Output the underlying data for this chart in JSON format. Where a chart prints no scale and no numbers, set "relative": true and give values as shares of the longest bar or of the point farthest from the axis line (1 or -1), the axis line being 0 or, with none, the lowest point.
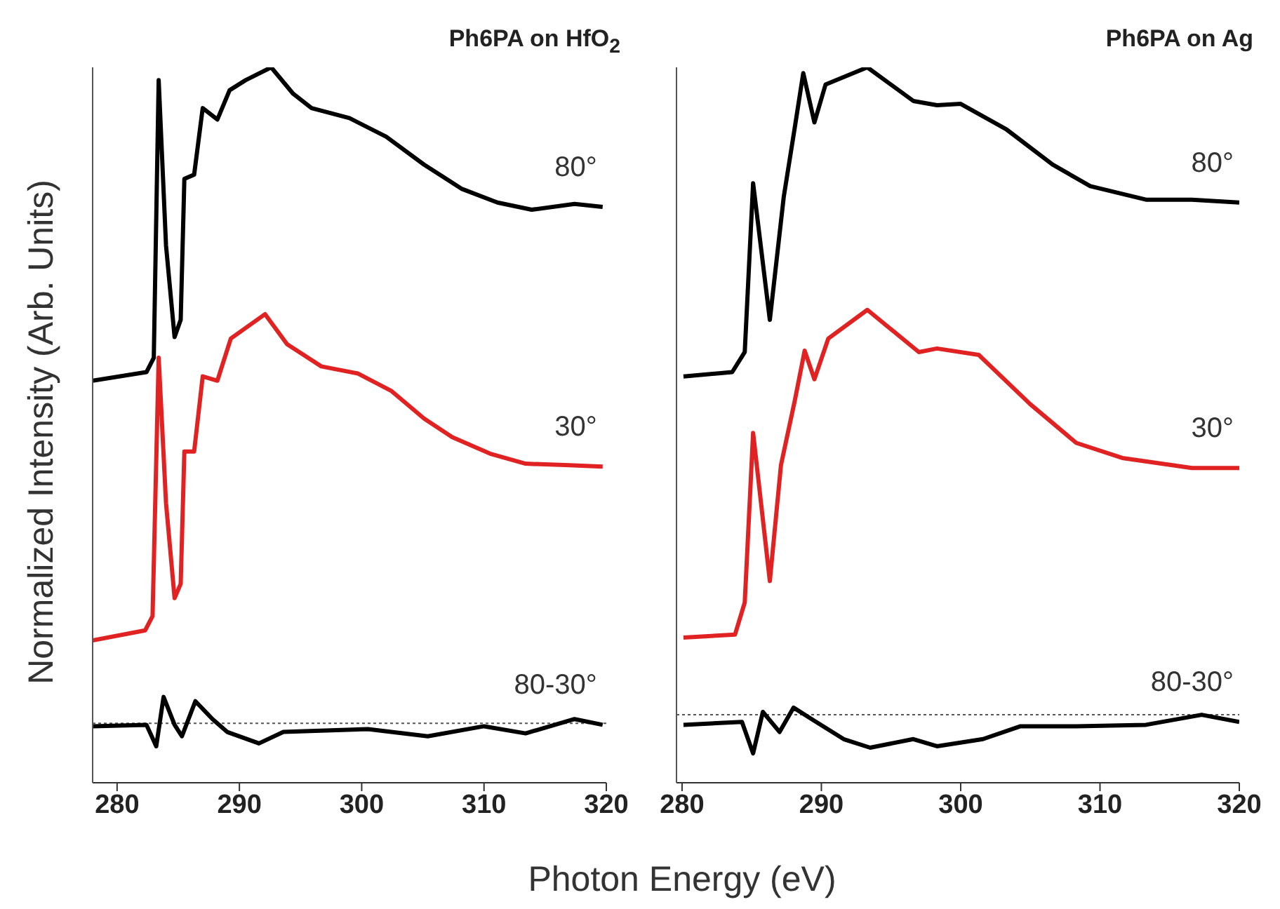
{
  "chart_data": [
    {
      "type": "line",
      "title": "Ph6PA on HfO$_{2}$",
      "ylabel": "Normalized Intensity (Arb. Units)",
      "xlabel": "Photon Energy (eV)",
      "relative": true,
      "xlim": [
        278,
        320
      ],
      "xticks": [
        280,
        290,
        300,
        310,
        320
      ],
      "series": [
        {
          "color": "#000000",
          "x": [
            278.0,
            282.4,
            283.0,
            283.4,
            284.0,
            284.7,
            285.2,
            285.5,
            286.3,
            287.0,
            288.2,
            289.2,
            290.5,
            292.6,
            294.4,
            295.9,
            299.0,
            302.0,
            305.1,
            308.2,
            311.1,
            313.9,
            317.4,
            319.7
          ],
          "values": [
            0.562,
            0.574,
            0.594,
            0.982,
            0.751,
            0.623,
            0.647,
            0.844,
            0.85,
            0.943,
            0.927,
            0.968,
            0.982,
            1.0,
            0.963,
            0.943,
            0.929,
            0.903,
            0.864,
            0.83,
            0.811,
            0.801,
            0.809,
            0.805
          ]
        },
        {
          "color": "#e02222",
          "x": [
            278.0,
            282.3,
            282.9,
            283.4,
            284.0,
            284.7,
            285.2,
            285.5,
            286.3,
            287.0,
            288.2,
            289.3,
            292.1,
            293.9,
            296.7,
            299.7,
            302.4,
            305.1,
            307.4,
            310.5,
            313.4,
            316.6,
            319.7
          ],
          "values": [
            0.199,
            0.213,
            0.233,
            0.594,
            0.391,
            0.258,
            0.278,
            0.463,
            0.463,
            0.568,
            0.562,
            0.621,
            0.655,
            0.613,
            0.582,
            0.572,
            0.548,
            0.509,
            0.483,
            0.46,
            0.446,
            0.444,
            0.442
          ]
        },
        {
          "color": "#000000",
          "x": [
            278.0,
            282.4,
            283.2,
            283.8,
            284.7,
            285.3,
            286.4,
            287.8,
            289.0,
            291.6,
            293.6,
            300.5,
            305.4,
            310.0,
            313.4,
            317.4,
            319.7
          ],
          "values": [
            0.079,
            0.081,
            0.051,
            0.12,
            0.081,
            0.065,
            0.114,
            0.089,
            0.071,
            0.055,
            0.071,
            0.075,
            0.065,
            0.079,
            0.069,
            0.089,
            0.081
          ]
        }
      ],
      "ref_lines": [
        {
          "axis": "y",
          "value": 0.083,
          "line_style": "dotted",
          "color": "#555555"
        }
      ],
      "annotations": [
        "80°",
        "30°",
        "80-30°"
      ]
    },
    {
      "type": "line",
      "title": "Ph6PA on Ag",
      "relative": true,
      "xlim": [
        279.6,
        320
      ],
      "xticks": [
        280,
        290,
        300,
        310,
        320
      ],
      "series": [
        {
          "color": "#000000",
          "x": [
            280.1,
            283.6,
            284.5,
            285.1,
            286.3,
            287.3,
            288.1,
            288.7,
            289.5,
            290.3,
            293.3,
            296.6,
            298.3,
            300.0,
            303.3,
            306.6,
            309.3,
            313.3,
            316.6,
            320.0
          ],
          "values": [
            0.568,
            0.574,
            0.602,
            0.838,
            0.647,
            0.819,
            0.917,
            0.992,
            0.923,
            0.976,
            1.0,
            0.953,
            0.947,
            0.949,
            0.913,
            0.864,
            0.834,
            0.815,
            0.815,
            0.811
          ]
        },
        {
          "color": "#e02222",
          "x": [
            280.1,
            283.8,
            284.5,
            285.1,
            286.3,
            287.1,
            288.1,
            288.8,
            289.5,
            290.5,
            293.3,
            297.0,
            298.3,
            301.3,
            305.0,
            308.3,
            311.6,
            316.6,
            320.0
          ],
          "values": [
            0.203,
            0.207,
            0.252,
            0.489,
            0.282,
            0.444,
            0.535,
            0.604,
            0.564,
            0.621,
            0.661,
            0.602,
            0.607,
            0.598,
            0.529,
            0.475,
            0.454,
            0.44,
            0.44
          ]
        },
        {
          "color": "#000000",
          "x": [
            280.1,
            284.3,
            285.1,
            285.8,
            287.0,
            288.0,
            289.3,
            291.6,
            293.5,
            296.6,
            298.3,
            301.6,
            304.3,
            308.3,
            313.3,
            317.3,
            320.0
          ],
          "values": [
            0.081,
            0.085,
            0.041,
            0.099,
            0.071,
            0.105,
            0.089,
            0.061,
            0.049,
            0.061,
            0.051,
            0.061,
            0.079,
            0.079,
            0.081,
            0.095,
            0.085
          ]
        }
      ],
      "ref_lines": [
        {
          "axis": "y",
          "value": 0.095,
          "line_style": "dotted",
          "color": "#555555"
        }
      ],
      "annotations": [
        "80°",
        "30°",
        "80-30°"
      ]
    }
  ]
}
